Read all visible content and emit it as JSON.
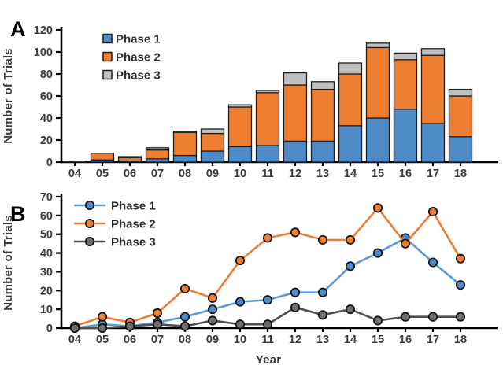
{
  "figure": {
    "xlabel": "Year",
    "ylabel": "Number of Trials"
  },
  "chart_data": [
    {
      "type": "bar",
      "stacked": true,
      "panel": "A",
      "title": "",
      "xlabel": "",
      "ylabel": "Number of Trials",
      "ylim": [
        0,
        120
      ],
      "ytick_step": 20,
      "yticks": [
        0,
        20,
        40,
        60,
        80,
        100,
        120
      ],
      "grid": false,
      "legend_position": "top-left-inside",
      "categories": [
        "04",
        "05",
        "06",
        "07",
        "08",
        "09",
        "10",
        "11",
        "12",
        "13",
        "14",
        "15",
        "16",
        "17",
        "18"
      ],
      "series": [
        {
          "name": "Phase 1",
          "color": "#4E8AC8",
          "values": [
            0,
            2,
            1,
            3,
            6,
            10,
            14,
            15,
            19,
            19,
            33,
            40,
            48,
            35,
            23
          ]
        },
        {
          "name": "Phase 2",
          "color": "#ED7D31",
          "values": [
            1,
            6,
            3,
            8,
            21,
            16,
            36,
            48,
            51,
            47,
            47,
            64,
            45,
            62,
            37
          ]
        },
        {
          "name": "Phase 3",
          "color": "#BFBFBF",
          "values": [
            0,
            0,
            1,
            2,
            1,
            4,
            2,
            2,
            11,
            7,
            10,
            4,
            6,
            6,
            6
          ]
        }
      ]
    },
    {
      "type": "line",
      "panel": "B",
      "title": "",
      "xlabel": "Year",
      "ylabel": "Number of Trials",
      "ylim": [
        0,
        70
      ],
      "ytick_step": 10,
      "yticks": [
        0,
        10,
        20,
        30,
        40,
        50,
        60,
        70
      ],
      "grid": false,
      "legend_position": "top-left-inside",
      "categories": [
        "04",
        "05",
        "06",
        "07",
        "08",
        "09",
        "10",
        "11",
        "12",
        "13",
        "14",
        "15",
        "16",
        "17",
        "18"
      ],
      "series": [
        {
          "name": "Phase 1",
          "color": "#5B9BD5",
          "marker_fill": "#4E8AC8",
          "values": [
            0,
            2,
            1,
            3,
            6,
            10,
            14,
            15,
            19,
            19,
            33,
            40,
            48,
            35,
            23
          ]
        },
        {
          "name": "Phase 2",
          "color": "#ED7D31",
          "marker_fill": "#ED7D31",
          "values": [
            1,
            6,
            3,
            8,
            21,
            16,
            36,
            48,
            51,
            47,
            47,
            64,
            45,
            62,
            37
          ]
        },
        {
          "name": "Phase 3",
          "color": "#4F4F4F",
          "marker_fill": "#6E6E6E",
          "values": [
            0,
            0,
            1,
            2,
            1,
            4,
            2,
            2,
            11,
            7,
            10,
            4,
            6,
            6,
            6
          ]
        }
      ]
    }
  ],
  "colors": {
    "axis": "#000000",
    "tick_text": "#3a3a3a",
    "bar_outline": "#1f1f1f",
    "marker_outline": "#111111",
    "background": "#ffffff"
  }
}
